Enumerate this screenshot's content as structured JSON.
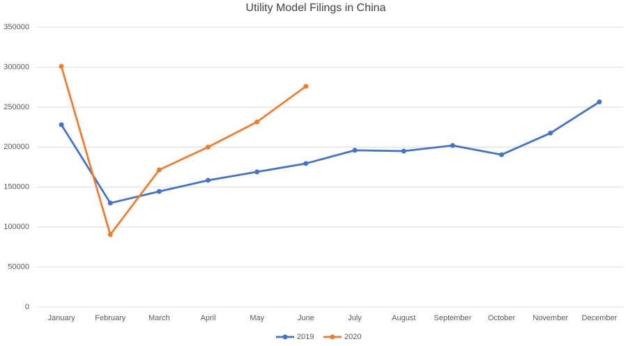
{
  "chart_data": {
    "type": "line",
    "title": "Utility Model Filings in China",
    "categories": [
      "January",
      "February",
      "March",
      "April",
      "May",
      "June",
      "July",
      "August",
      "September",
      "October",
      "November",
      "December"
    ],
    "series": [
      {
        "name": "2019",
        "color": "#4472c4",
        "values": [
          228000,
          130000,
          144500,
          158500,
          169000,
          179500,
          196000,
          195000,
          202000,
          190500,
          217500,
          256500
        ]
      },
      {
        "name": "2020",
        "color": "#ed7d31",
        "values": [
          301000,
          90500,
          171500,
          200000,
          231500,
          276000,
          null,
          null,
          null,
          null,
          null,
          null
        ]
      }
    ],
    "ylim": [
      0,
      350000
    ],
    "yticks": [
      0,
      50000,
      100000,
      150000,
      200000,
      250000,
      300000,
      350000
    ],
    "grid": true,
    "legend": "bottom"
  }
}
